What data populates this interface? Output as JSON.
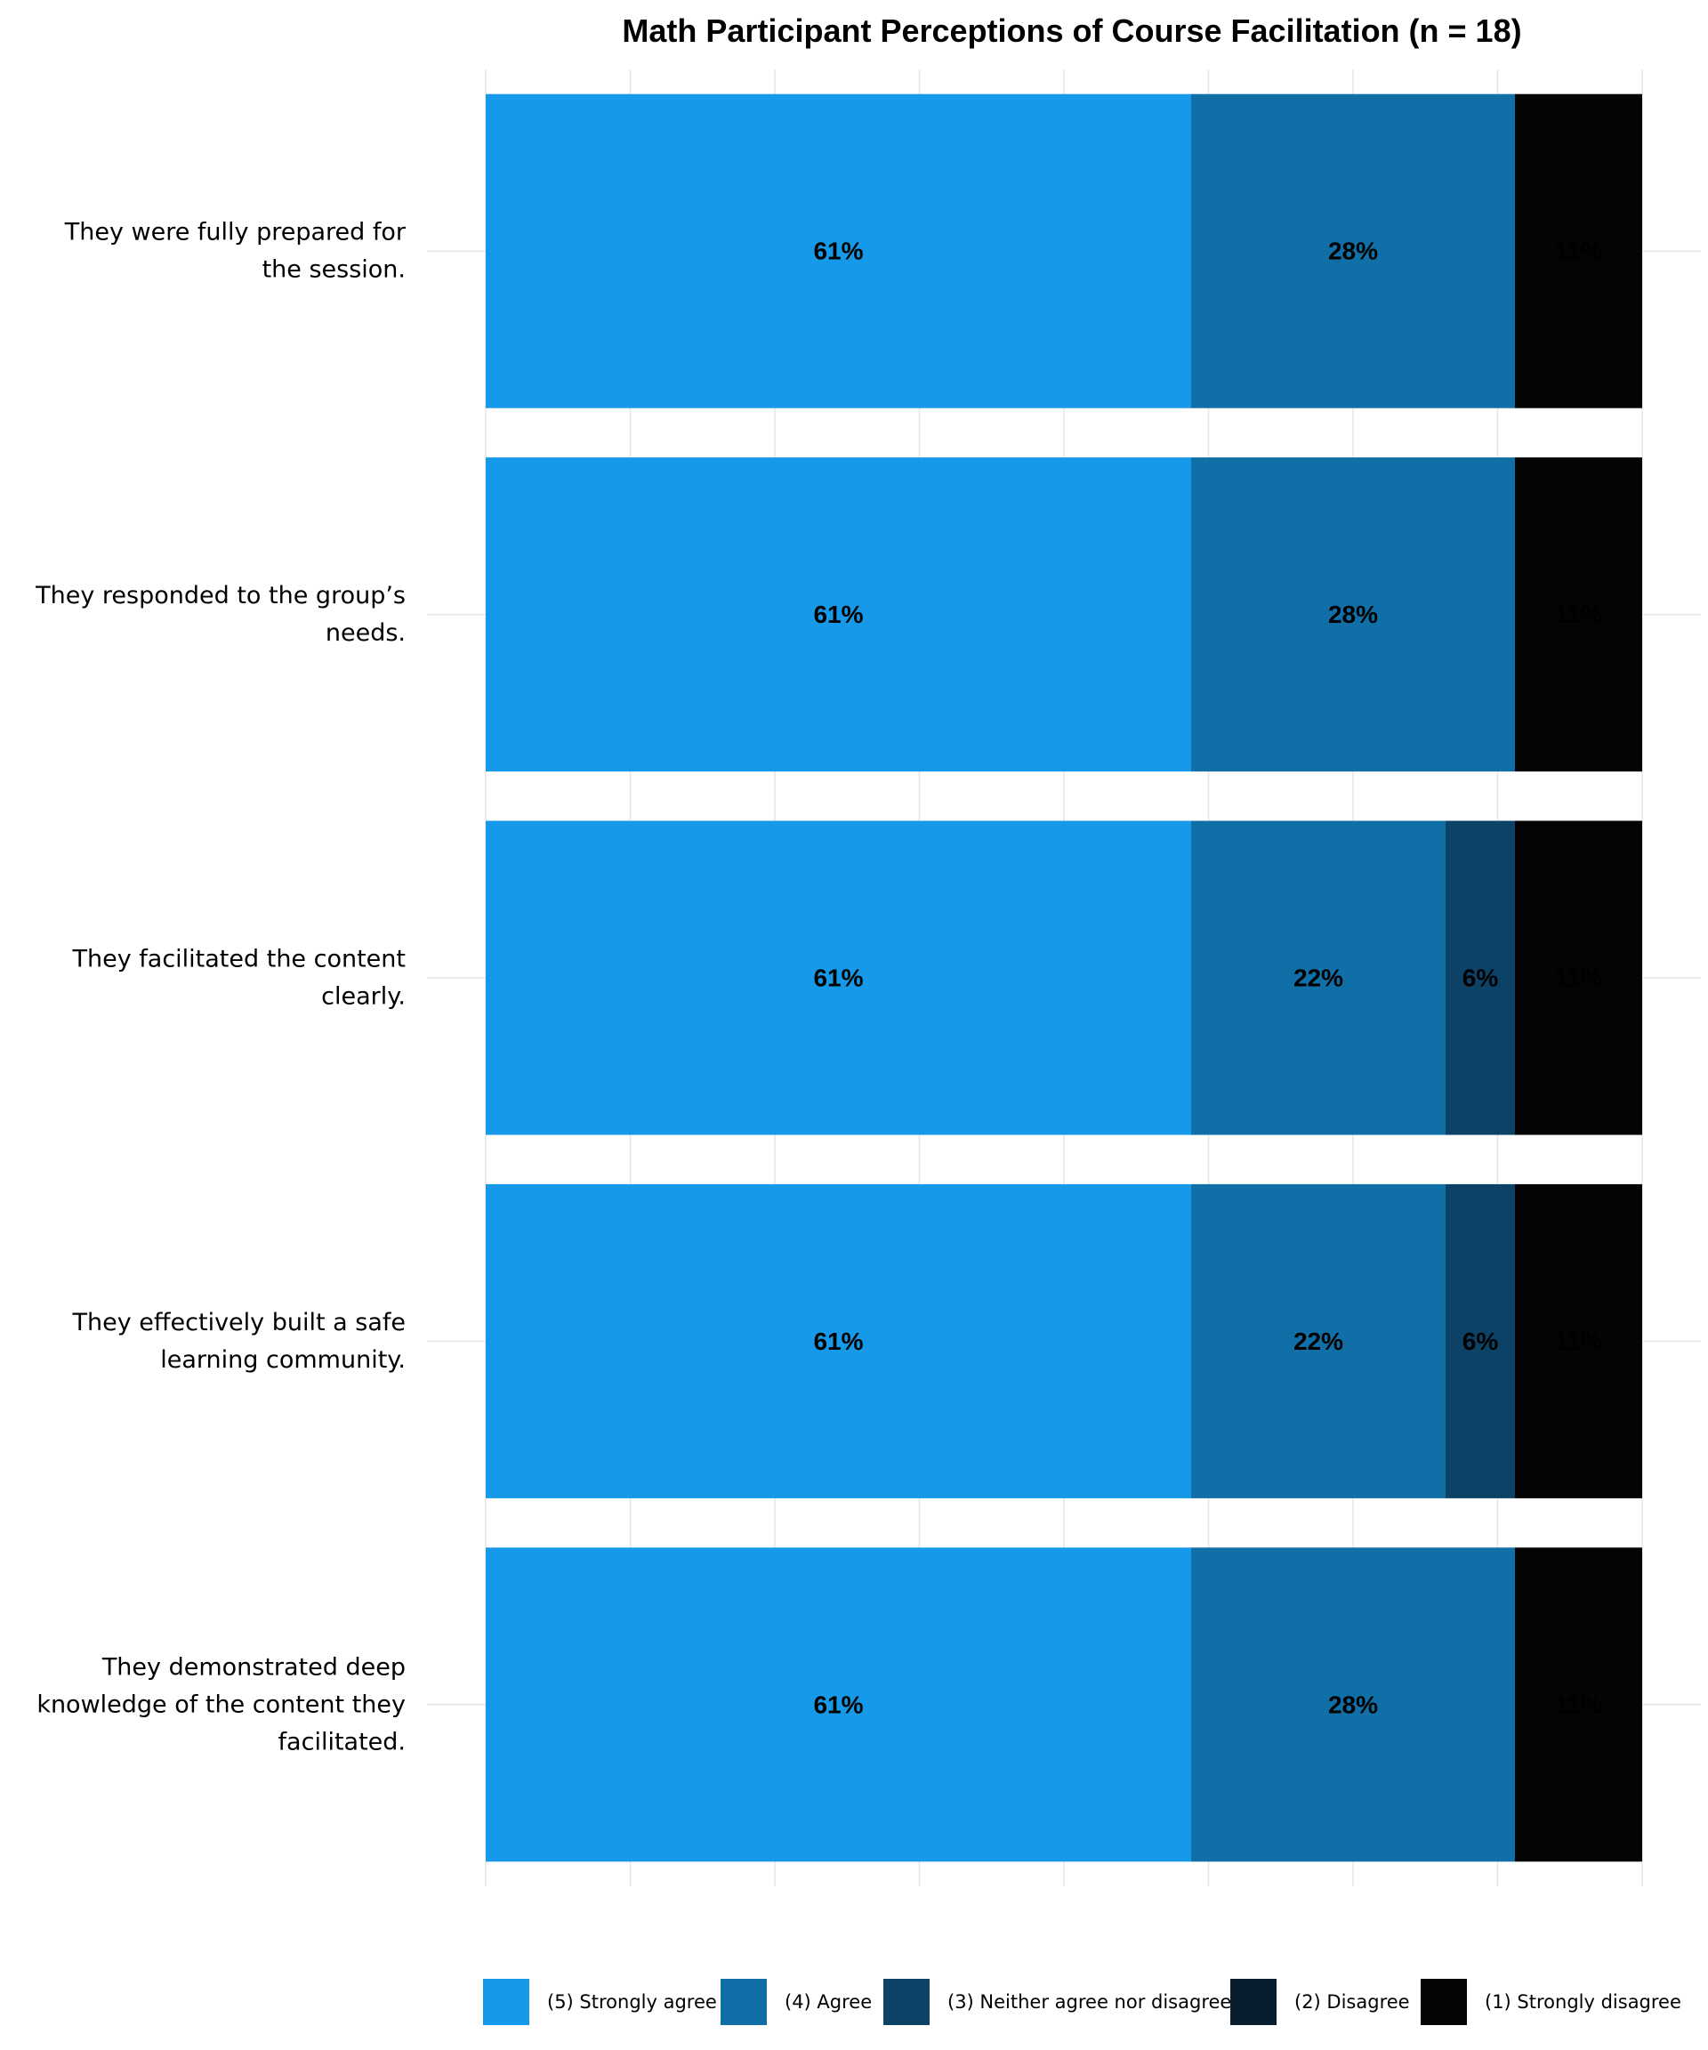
{
  "chart_data": {
    "type": "bar",
    "orientation": "horizontal-stacked",
    "title": "Math Participant Perceptions of Course Facilitation (n = 18)",
    "categories": [
      [
        "They were fully prepared for",
        "the session."
      ],
      [
        "They responded to the group’s",
        "needs."
      ],
      [
        "They facilitated the content",
        "clearly."
      ],
      [
        "They effectively built a safe",
        "learning community."
      ],
      [
        "They demonstrated deep",
        "knowledge of the content they",
        "facilitated."
      ]
    ],
    "series": [
      {
        "name": "(5) Strongly agree",
        "color": "#1699e8",
        "values": [
          61,
          61,
          61,
          61,
          61
        ],
        "labels": [
          "61%",
          "61%",
          "61%",
          "61%",
          "61%"
        ]
      },
      {
        "name": "(4) Agree",
        "color": "#106fa7",
        "values": [
          28,
          28,
          22,
          22,
          28
        ],
        "labels": [
          "28%",
          "28%",
          "22%",
          "22%",
          "28%"
        ]
      },
      {
        "name": "(3) Neither agree nor disagree",
        "color": "#0b4265",
        "values": [
          0,
          0,
          6,
          6,
          0
        ],
        "labels": [
          "",
          "",
          "6%",
          "6%",
          ""
        ]
      },
      {
        "name": "(2) Disagree",
        "color": "#081d2e",
        "values": [
          0,
          0,
          0,
          0,
          0
        ],
        "labels": [
          "",
          "",
          "",
          "",
          ""
        ]
      },
      {
        "name": "(1) Strongly disagree",
        "color": "#040404",
        "values": [
          11,
          11,
          11,
          11,
          11
        ],
        "labels": [
          "11%",
          "11%",
          "11%",
          "11%",
          "11%"
        ]
      }
    ],
    "xlim": [
      0,
      100
    ],
    "grid": true,
    "legend": "bottom"
  }
}
